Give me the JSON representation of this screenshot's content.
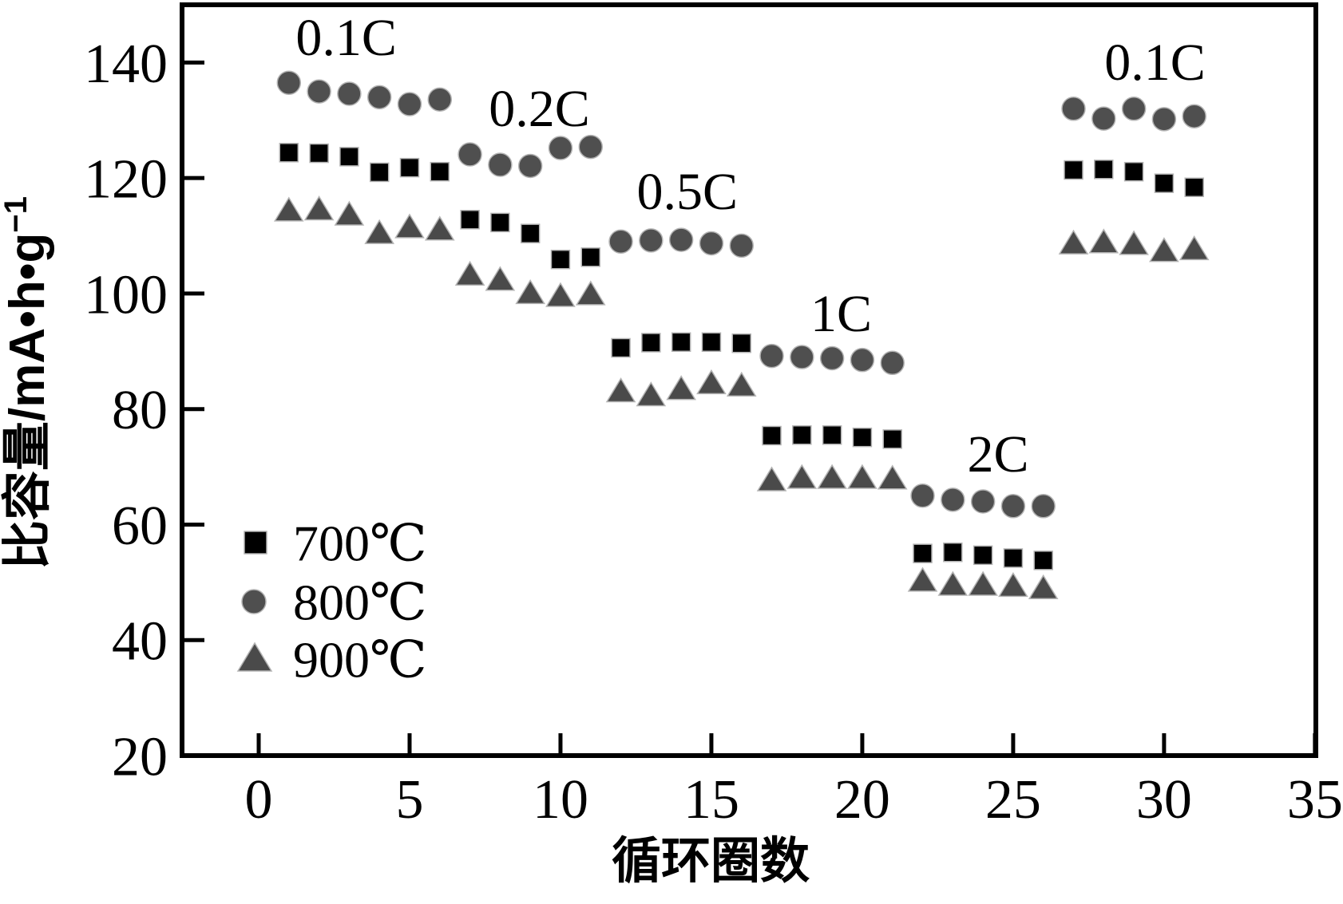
{
  "chart_data": {
    "type": "scatter",
    "title": "",
    "xlabel": "循环圈数",
    "ylabel": "比容量/mA•h•g⁻¹",
    "ylabel_main": "比容量/mA•h•g",
    "ylabel_sup": "−1",
    "xlim": [
      -2.54,
      35.03
    ],
    "ylim": [
      20,
      150
    ],
    "x_ticks": [
      0,
      5,
      10,
      15,
      20,
      25,
      30,
      35
    ],
    "y_ticks": [
      20,
      40,
      60,
      80,
      100,
      120,
      140
    ],
    "grid": false,
    "x": [
      1,
      2,
      3,
      4,
      5,
      6,
      7,
      8,
      9,
      10,
      11,
      12,
      13,
      14,
      15,
      16,
      17,
      18,
      19,
      20,
      21,
      22,
      23,
      24,
      25,
      26,
      27,
      28,
      29,
      30,
      31
    ],
    "rate_segments": [
      {
        "rate": "0.1C",
        "start_cycle": 1,
        "end_cycle": 6
      },
      {
        "rate": "0.2C",
        "start_cycle": 7,
        "end_cycle": 11
      },
      {
        "rate": "0.5C",
        "start_cycle": 12,
        "end_cycle": 16
      },
      {
        "rate": "1C",
        "start_cycle": 17,
        "end_cycle": 21
      },
      {
        "rate": "2C",
        "start_cycle": 22,
        "end_cycle": 26
      },
      {
        "rate": "0.1C",
        "start_cycle": 27,
        "end_cycle": 31
      }
    ],
    "series": [
      {
        "name": "700℃",
        "marker": "square",
        "color": "#000000",
        "values": [
          124.4,
          124.3,
          123.7,
          121.0,
          121.8,
          121.1,
          112.8,
          112.3,
          110.4,
          105.9,
          106.3,
          90.6,
          91.5,
          91.6,
          91.6,
          91.4,
          75.4,
          75.5,
          75.5,
          75.1,
          74.8,
          55.0,
          55.2,
          54.7,
          54.2,
          53.8,
          121.4,
          121.5,
          121.1,
          119.1,
          118.4
        ]
      },
      {
        "name": "800℃",
        "marker": "circle",
        "color": "#4f4f4f",
        "values": [
          136.5,
          135.0,
          134.6,
          134.0,
          132.8,
          133.6,
          124.1,
          122.3,
          122.1,
          125.2,
          125.4,
          109.0,
          109.2,
          109.3,
          108.7,
          108.3,
          89.2,
          89.0,
          88.8,
          88.5,
          88.0,
          65.0,
          64.3,
          64.0,
          63.2,
          63.2,
          132.0,
          130.3,
          132.0,
          130.2,
          130.7
        ]
      },
      {
        "name": "900℃",
        "marker": "triangle",
        "color": "#4a4a4a",
        "values": [
          114.3,
          114.5,
          113.6,
          110.4,
          111.4,
          111.0,
          103.2,
          102.3,
          100.0,
          99.5,
          99.8,
          83.0,
          82.3,
          83.4,
          84.4,
          84.0,
          67.6,
          68.0,
          68.0,
          68.0,
          67.9,
          50.2,
          49.5,
          49.5,
          49.3,
          48.9,
          108.6,
          108.8,
          108.5,
          107.3,
          107.6
        ]
      }
    ],
    "annotations": [
      {
        "label": "0.1C",
        "x": 2.9,
        "y": 144.5
      },
      {
        "label": "0.2C",
        "x": 9.3,
        "y": 132.2
      },
      {
        "label": "0.5C",
        "x": 14.2,
        "y": 117.8
      },
      {
        "label": "1C",
        "x": 19.3,
        "y": 96.7
      },
      {
        "label": "2C",
        "x": 24.5,
        "y": 72.4
      },
      {
        "label": "0.1C",
        "x": 29.7,
        "y": 140.2
      }
    ],
    "legend": {
      "position": "lower-left",
      "entries": [
        "700℃",
        "800℃",
        "900℃"
      ]
    },
    "colors": {
      "series_700": "#000000",
      "series_800": "#4f4f4f",
      "series_900": "#4a4a4a",
      "marker_edge": "#b3b3b3",
      "axis": "#000000"
    }
  }
}
